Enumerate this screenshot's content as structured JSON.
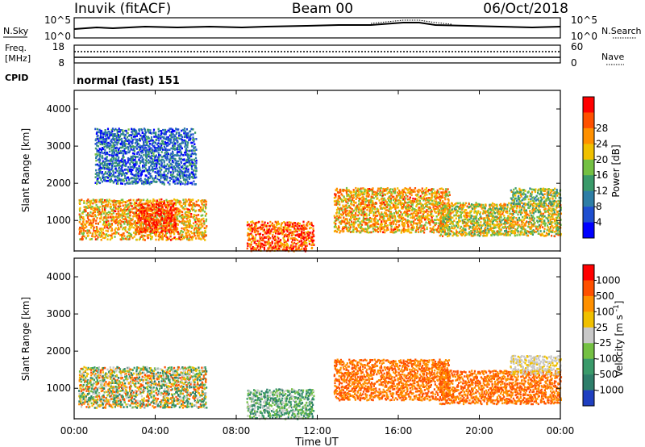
{
  "header": {
    "station": "Inuvik (fitACF)",
    "beam": "Beam 00",
    "date": "06/Oct/2018"
  },
  "params": {
    "nsky_label": "N.Sky",
    "nsearch_label": "N.Search",
    "freq_label_1": "Freq.",
    "freq_label_2": "[MHz]",
    "nave_label": "Nave",
    "cpid_label": "CPID",
    "cpid_value": "normal (fast) 151",
    "noise_ticks_left": [
      "10^5",
      "10^0"
    ],
    "noise_ticks_right": [
      "10^5",
      "10^0"
    ],
    "freq_ticks": [
      "18",
      "8"
    ],
    "nave_ticks": [
      "60",
      "0"
    ]
  },
  "chart_data": [
    {
      "type": "heatmap",
      "name": "power",
      "ylabel": "Slant Range [km]",
      "xlabel": "Time UT",
      "x_ticks": [
        "00:00",
        "04:00",
        "08:00",
        "12:00",
        "16:00",
        "20:00",
        "00:00"
      ],
      "y_ticks": [
        "1000",
        "2000",
        "3000",
        "4000"
      ],
      "ylim": [
        180,
        4500
      ],
      "xlim_hours": [
        0,
        24
      ],
      "colorbar": {
        "label": "Power [dB]",
        "ticks": [
          "4",
          "8",
          "12",
          "16",
          "20",
          "24",
          "28"
        ],
        "colors": [
          "#0000ff",
          "#1f4fd0",
          "#2e7ea6",
          "#3a9a6a",
          "#74c043",
          "#f0c000",
          "#ff9000",
          "#ff5000",
          "#ff0000"
        ]
      },
      "regions": [
        {
          "t": [
            0.2,
            6.5
          ],
          "r": [
            500,
            1600
          ],
          "level": 0.7
        },
        {
          "t": [
            3.0,
            5.0
          ],
          "r": [
            700,
            1500
          ],
          "level": 0.95
        },
        {
          "t": [
            8.5,
            11.8
          ],
          "r": [
            200,
            1000
          ],
          "level": 0.85
        },
        {
          "t": [
            12.8,
            18.5
          ],
          "r": [
            700,
            1900
          ],
          "level": 0.7
        },
        {
          "t": [
            18.0,
            24.0
          ],
          "r": [
            600,
            1500
          ],
          "level": 0.6
        },
        {
          "t": [
            21.5,
            24.0
          ],
          "r": [
            1400,
            1900
          ],
          "level": 0.5
        },
        {
          "t": [
            1.0,
            6.0
          ],
          "r": [
            2000,
            3500
          ],
          "level": 0.2
        }
      ]
    },
    {
      "type": "heatmap",
      "name": "velocity",
      "ylabel": "Slant Range [km]",
      "xlabel": "Time UT",
      "x_ticks": [
        "00:00",
        "04:00",
        "08:00",
        "12:00",
        "16:00",
        "20:00",
        "00:00"
      ],
      "y_ticks": [
        "1000",
        "2000",
        "3000",
        "4000"
      ],
      "ylim": [
        180,
        4500
      ],
      "xlim_hours": [
        0,
        24
      ],
      "colorbar": {
        "label": "Velocity [m s^-1]",
        "ticks": [
          "1000",
          "500",
          "100",
          "25",
          "-25",
          "-100",
          "-500",
          "-1000"
        ],
        "colors": [
          "#1f3fc0",
          "#2e7e6a",
          "#3a9a6a",
          "#74c043",
          "#c8c8c8",
          "#f0c000",
          "#ff9000",
          "#ff5000",
          "#ff0000"
        ]
      },
      "regions": [
        {
          "t": [
            0.2,
            6.5
          ],
          "r": [
            500,
            1600
          ],
          "level": "mixed"
        },
        {
          "t": [
            8.5,
            11.8
          ],
          "r": [
            200,
            1000
          ],
          "level": "green"
        },
        {
          "t": [
            12.8,
            18.5
          ],
          "r": [
            700,
            1800
          ],
          "level": "orange"
        },
        {
          "t": [
            18.0,
            24.0
          ],
          "r": [
            600,
            1500
          ],
          "level": "orange"
        },
        {
          "t": [
            21.5,
            24.0
          ],
          "r": [
            1400,
            1900
          ],
          "level": "grey"
        }
      ]
    }
  ]
}
